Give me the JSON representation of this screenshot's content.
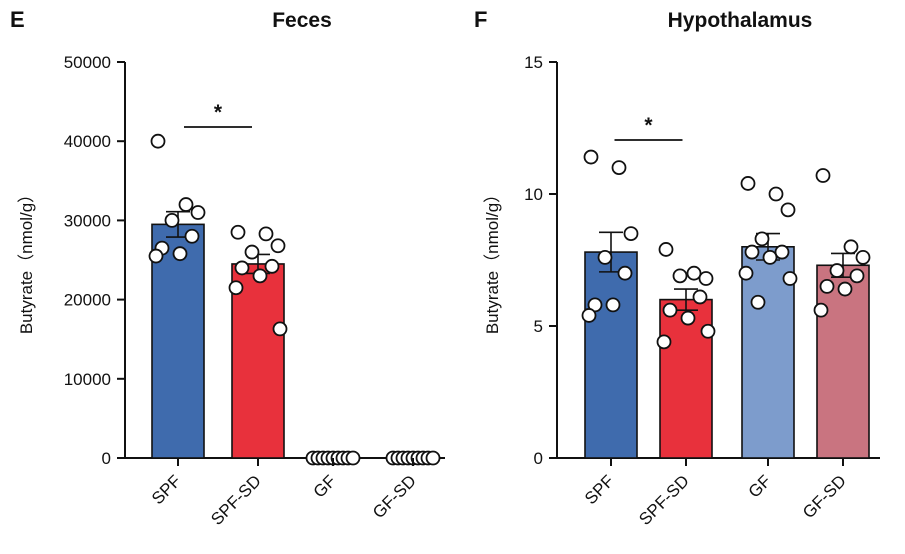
{
  "chart_data": [
    {
      "type": "bar",
      "panel": "E",
      "title": "Feces",
      "ylabel": "Butyrate（nmol/g）",
      "xlabel": "",
      "ylim": [
        0,
        50000
      ],
      "yticks": [
        "0",
        "10000",
        "20000",
        "30000",
        "40000",
        "50000"
      ],
      "categories": [
        "SPF",
        "SPF-SD",
        "GF",
        "GF-SD"
      ],
      "values": [
        29500,
        24500,
        0,
        0
      ],
      "sem": [
        1600,
        1200,
        0,
        0
      ],
      "colors": [
        "#3f6bad",
        "#e8313c",
        "#7d9ccc",
        "#c97480"
      ],
      "points": [
        [
          40000,
          32000,
          31000,
          30000,
          28000,
          26500,
          25800,
          25500
        ],
        [
          28500,
          28300,
          26800,
          26000,
          24200,
          24000,
          23000,
          21500,
          16300
        ],
        [
          0,
          0,
          0,
          0,
          0,
          0,
          0,
          0,
          0
        ],
        [
          0,
          0,
          0,
          0,
          0,
          0,
          0,
          0,
          0
        ]
      ],
      "significance": {
        "label": "*",
        "between": [
          "SPF",
          "SPF-SD"
        ]
      }
    },
    {
      "type": "bar",
      "panel": "F",
      "title": "Hypothalamus",
      "ylabel": "Butyrate（nmol/g）",
      "xlabel": "",
      "ylim": [
        0,
        15
      ],
      "yticks": [
        "0",
        "5",
        "10",
        "15"
      ],
      "categories": [
        "SPF",
        "SPF-SD",
        "GF",
        "GF-SD"
      ],
      "values": [
        7.8,
        6.0,
        8.0,
        7.3
      ],
      "sem": [
        0.75,
        0.4,
        0.5,
        0.45
      ],
      "colors": [
        "#3f6bad",
        "#e8313c",
        "#7d9ccc",
        "#c97480"
      ],
      "points": [
        [
          11.4,
          11.0,
          8.5,
          7.6,
          7.0,
          5.8,
          5.8,
          5.4
        ],
        [
          7.9,
          7.0,
          6.8,
          6.9,
          6.1,
          5.6,
          5.3,
          4.4,
          4.8
        ],
        [
          10.4,
          10.0,
          9.4,
          8.3,
          7.8,
          7.8,
          7.6,
          7.0,
          6.8,
          5.9
        ],
        [
          10.7,
          8.0,
          7.6,
          7.1,
          6.9,
          6.5,
          6.4,
          5.6
        ]
      ],
      "significance": {
        "label": "*",
        "between": [
          "SPF",
          "SPF-SD"
        ]
      }
    }
  ]
}
